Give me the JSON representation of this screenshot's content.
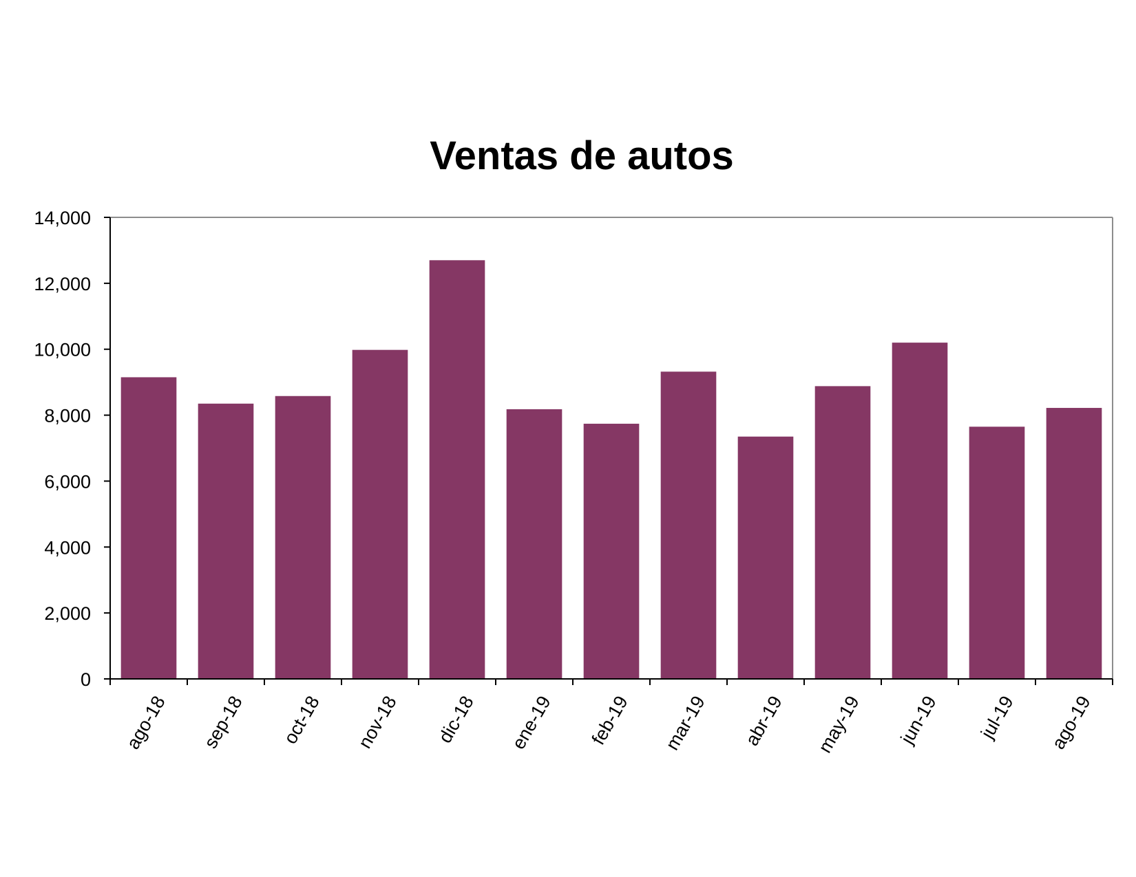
{
  "chart_data": {
    "type": "bar",
    "title": "Ventas de autos",
    "xlabel": "",
    "ylabel": "",
    "categories": [
      "ago-18",
      "sep-18",
      "oct-18",
      "nov-18",
      "dic-18",
      "ene-19",
      "feb-19",
      "mar-19",
      "abr-19",
      "may-19",
      "jun-19",
      "jul-19",
      "ago-19"
    ],
    "values": [
      9150,
      8350,
      8580,
      9980,
      12700,
      8180,
      7740,
      9320,
      7350,
      8880,
      10200,
      7650,
      8220
    ],
    "ylim": [
      0,
      14000
    ],
    "yticks": [
      0,
      2000,
      4000,
      6000,
      8000,
      10000,
      12000,
      14000
    ],
    "ytick_labels": [
      "0",
      "2,000",
      "4,000",
      "6,000",
      "8,000",
      "10,000",
      "12,000",
      "14,000"
    ],
    "bar_color": "#853764",
    "grid": false,
    "legend": "none"
  }
}
